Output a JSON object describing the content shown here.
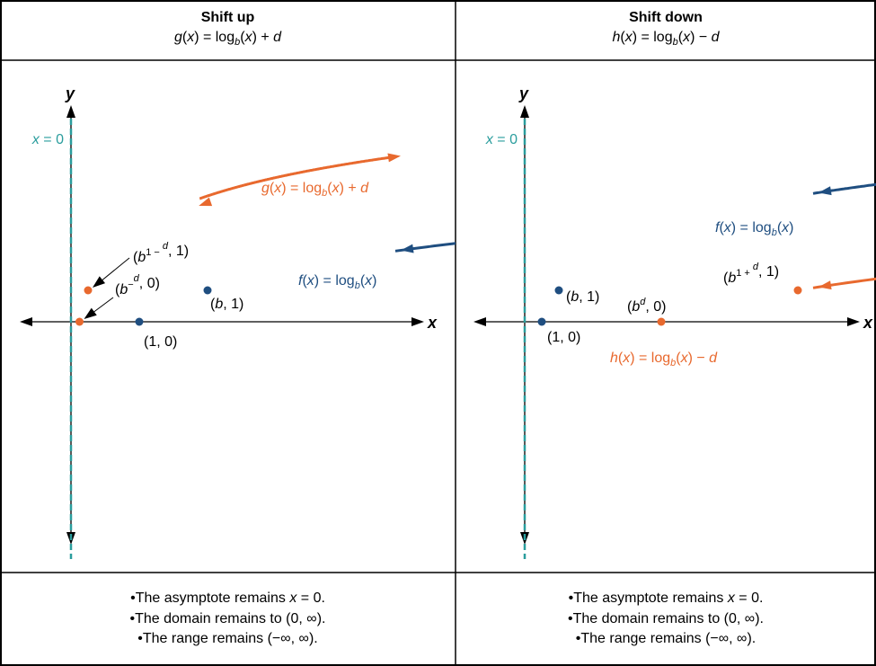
{
  "colors": {
    "original": "#1f4e80",
    "shifted": "#e8692e",
    "asymptote": "#2a9d9d",
    "axis": "#000000"
  },
  "columns": [
    {
      "title": "Shift up",
      "formula": [
        [
          "g",
          "i"
        ],
        [
          "(",
          ""
        ],
        [
          "x",
          "i"
        ],
        [
          ") = log",
          ""
        ],
        [
          "b",
          "sub"
        ],
        [
          "(",
          ""
        ],
        [
          "x",
          "i"
        ],
        [
          ") + ",
          ""
        ],
        [
          "d",
          "i"
        ]
      ],
      "graph": {
        "x_axis_label": "x",
        "y_axis_label": "y",
        "asymptote_label": "x = 0",
        "shifted_label": [
          [
            "g",
            "i"
          ],
          [
            "(",
            ""
          ],
          [
            "x",
            "i"
          ],
          [
            ") = log",
            ""
          ],
          [
            "b",
            "sub"
          ],
          [
            "(",
            ""
          ],
          [
            "x",
            "i"
          ],
          [
            ") + ",
            ""
          ],
          [
            "d",
            "i"
          ]
        ],
        "original_label": [
          [
            "f",
            "i"
          ],
          [
            "(",
            ""
          ],
          [
            "x",
            "i"
          ],
          [
            ") = log",
            ""
          ],
          [
            "b",
            "sub"
          ],
          [
            "(",
            ""
          ],
          [
            "x",
            "i"
          ],
          [
            ")",
            ""
          ]
        ],
        "points": [
          {
            "label": [
              [
                "(",
                ""
              ],
              [
                "b",
                "i"
              ],
              [
                "1 − ",
                "sup"
              ],
              [
                "d",
                "supi"
              ],
              [
                ", 1)",
                ""
              ]
            ],
            "curve": "shifted"
          },
          {
            "label": [
              [
                "(",
                ""
              ],
              [
                "b",
                "i"
              ],
              [
                "−",
                "sup"
              ],
              [
                "d",
                "supi"
              ],
              [
                ", 0)",
                ""
              ]
            ],
            "curve": "shifted"
          },
          {
            "label": [
              [
                "(",
                ""
              ],
              [
                "b",
                "i"
              ],
              [
                ", 1)",
                ""
              ]
            ],
            "curve": "original"
          },
          {
            "label": [
              [
                "(1, 0)",
                ""
              ]
            ],
            "curve": "original"
          }
        ]
      },
      "bullets": [
        [
          [
            "•The asymptote remains ",
            ""
          ],
          [
            "x",
            "i"
          ],
          [
            " = 0.",
            ""
          ]
        ],
        [
          [
            "•The domain remains to (0, ∞).",
            ""
          ]
        ],
        [
          [
            "•The range remains (−∞, ∞).",
            ""
          ]
        ]
      ]
    },
    {
      "title": "Shift down",
      "formula": [
        [
          "h",
          "i"
        ],
        [
          "(",
          ""
        ],
        [
          "x",
          "i"
        ],
        [
          ") = log",
          ""
        ],
        [
          "b",
          "sub"
        ],
        [
          "(",
          ""
        ],
        [
          "x",
          "i"
        ],
        [
          ") − ",
          ""
        ],
        [
          "d",
          "i"
        ]
      ],
      "graph": {
        "x_axis_label": "x",
        "y_axis_label": "y",
        "asymptote_label": "x = 0",
        "shifted_label": [
          [
            "h",
            "i"
          ],
          [
            "(",
            ""
          ],
          [
            "x",
            "i"
          ],
          [
            ") = log",
            ""
          ],
          [
            "b",
            "sub"
          ],
          [
            "(",
            ""
          ],
          [
            "x",
            "i"
          ],
          [
            ") − ",
            ""
          ],
          [
            "d",
            "i"
          ]
        ],
        "original_label": [
          [
            "f",
            "i"
          ],
          [
            "(",
            ""
          ],
          [
            "x",
            "i"
          ],
          [
            ") = log",
            ""
          ],
          [
            "b",
            "sub"
          ],
          [
            "(",
            ""
          ],
          [
            "x",
            "i"
          ],
          [
            ")",
            ""
          ]
        ],
        "points": [
          {
            "label": [
              [
                "(",
                ""
              ],
              [
                "b",
                "i"
              ],
              [
                ", 1)",
                ""
              ]
            ],
            "curve": "original"
          },
          {
            "label": [
              [
                "(1, 0)",
                ""
              ]
            ],
            "curve": "original"
          },
          {
            "label": [
              [
                "(",
                ""
              ],
              [
                "b",
                "i"
              ],
              [
                "d",
                "supi"
              ],
              [
                ", 0)",
                ""
              ]
            ],
            "curve": "shifted"
          },
          {
            "label": [
              [
                "(",
                ""
              ],
              [
                "b",
                "i"
              ],
              [
                "1 + ",
                "sup"
              ],
              [
                "d",
                "supi"
              ],
              [
                ", 1)",
                ""
              ]
            ],
            "curve": "shifted"
          }
        ]
      },
      "bullets": [
        [
          [
            "•The asymptote remains ",
            ""
          ],
          [
            "x",
            "i"
          ],
          [
            " = 0.",
            ""
          ]
        ],
        [
          [
            "•The domain remains to (0, ∞).",
            ""
          ]
        ],
        [
          [
            "•The range remains (−∞, ∞).",
            ""
          ]
        ]
      ]
    }
  ]
}
